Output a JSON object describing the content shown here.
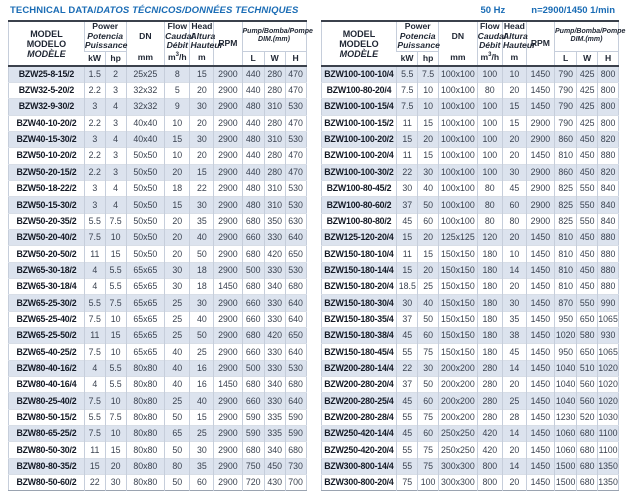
{
  "page": {
    "title_plain": "TECHNICAL DATA/",
    "title_italic": "DATOS TÉCNICOS/DONNÉES TECHNIQUES",
    "frequency": "50 Hz",
    "speed": "n=2900/1450 1/min"
  },
  "table_header": {
    "model": [
      "MODEL",
      "MODELO",
      "MODÈLE"
    ],
    "power": [
      "Power",
      "Potencia",
      "Puissance"
    ],
    "power_units": [
      "kW",
      "hp"
    ],
    "dn_label": "DN",
    "dn_unit": "mm",
    "flow": [
      "Flow",
      "Caudal",
      "Débit"
    ],
    "flow_unit_base": "m",
    "flow_unit_sup": "3",
    "flow_unit_tail": "/h",
    "head": [
      "Head",
      "Altura",
      "Hauteur"
    ],
    "head_unit": "m",
    "rpm_label": "RPM",
    "dim": [
      "Pump/Bomba/Pompe",
      "DIM.(mm)"
    ],
    "dim_units": [
      "L",
      "W",
      "H"
    ]
  },
  "tables": {
    "left": {
      "rows": [
        [
          "BZW25-8-15/2",
          "1.5",
          "2",
          "25x25",
          "8",
          "15",
          "2900",
          "440",
          "280",
          "470"
        ],
        [
          "BZW32-5-20/2",
          "2.2",
          "3",
          "32x32",
          "5",
          "20",
          "2900",
          "440",
          "280",
          "470"
        ],
        [
          "BZW32-9-30/2",
          "3",
          "4",
          "32x32",
          "9",
          "30",
          "2900",
          "480",
          "310",
          "530"
        ],
        [
          "BZW40-10-20/2",
          "2.2",
          "3",
          "40x40",
          "10",
          "20",
          "2900",
          "440",
          "280",
          "470"
        ],
        [
          "BZW40-15-30/2",
          "3",
          "4",
          "40x40",
          "15",
          "30",
          "2900",
          "480",
          "310",
          "530"
        ],
        [
          "BZW50-10-20/2",
          "2.2",
          "3",
          "50x50",
          "10",
          "20",
          "2900",
          "440",
          "280",
          "470"
        ],
        [
          "BZW50-20-15/2",
          "2.2",
          "3",
          "50x50",
          "20",
          "15",
          "2900",
          "440",
          "280",
          "470"
        ],
        [
          "BZW50-18-22/2",
          "3",
          "4",
          "50x50",
          "18",
          "22",
          "2900",
          "480",
          "310",
          "530"
        ],
        [
          "BZW50-15-30/2",
          "3",
          "4",
          "50x50",
          "15",
          "30",
          "2900",
          "480",
          "310",
          "530"
        ],
        [
          "BZW50-20-35/2",
          "5.5",
          "7.5",
          "50x50",
          "20",
          "35",
          "2900",
          "680",
          "350",
          "630"
        ],
        [
          "BZW50-20-40/2",
          "7.5",
          "10",
          "50x50",
          "20",
          "40",
          "2900",
          "660",
          "330",
          "640"
        ],
        [
          "BZW50-20-50/2",
          "11",
          "15",
          "50x50",
          "20",
          "50",
          "2900",
          "680",
          "420",
          "650"
        ],
        [
          "BZW65-30-18/2",
          "4",
          "5.5",
          "65x65",
          "30",
          "18",
          "2900",
          "500",
          "330",
          "530"
        ],
        [
          "BZW65-30-18/4",
          "4",
          "5.5",
          "65x65",
          "30",
          "18",
          "1450",
          "680",
          "340",
          "680"
        ],
        [
          "BZW65-25-30/2",
          "5.5",
          "7.5",
          "65x65",
          "25",
          "30",
          "2900",
          "660",
          "330",
          "640"
        ],
        [
          "BZW65-25-40/2",
          "7.5",
          "10",
          "65x65",
          "25",
          "40",
          "2900",
          "660",
          "330",
          "640"
        ],
        [
          "BZW65-25-50/2",
          "11",
          "15",
          "65x65",
          "25",
          "50",
          "2900",
          "680",
          "420",
          "650"
        ],
        [
          "BZW65-40-25/2",
          "7.5",
          "10",
          "65x65",
          "40",
          "25",
          "2900",
          "660",
          "330",
          "640"
        ],
        [
          "BZW80-40-16/2",
          "4",
          "5.5",
          "80x80",
          "40",
          "16",
          "2900",
          "500",
          "330",
          "530"
        ],
        [
          "BZW80-40-16/4",
          "4",
          "5.5",
          "80x80",
          "40",
          "16",
          "1450",
          "680",
          "340",
          "680"
        ],
        [
          "BZW80-25-40/2",
          "7.5",
          "10",
          "80x80",
          "25",
          "40",
          "2900",
          "660",
          "330",
          "640"
        ],
        [
          "BZW80-50-15/2",
          "5.5",
          "7.5",
          "80x80",
          "50",
          "15",
          "2900",
          "590",
          "335",
          "590"
        ],
        [
          "BZW80-65-25/2",
          "7.5",
          "10",
          "80x80",
          "65",
          "25",
          "2900",
          "590",
          "335",
          "590"
        ],
        [
          "BZW80-50-30/2",
          "11",
          "15",
          "80x80",
          "50",
          "30",
          "2900",
          "680",
          "340",
          "680"
        ],
        [
          "BZW80-80-35/2",
          "15",
          "20",
          "80x80",
          "80",
          "35",
          "2900",
          "750",
          "450",
          "730"
        ],
        [
          "BZW80-50-60/2",
          "22",
          "30",
          "80x80",
          "50",
          "60",
          "2900",
          "720",
          "430",
          "700"
        ]
      ]
    },
    "right": {
      "rows": [
        [
          "BZW100-100-10/4",
          "5.5",
          "7.5",
          "100x100",
          "100",
          "10",
          "1450",
          "790",
          "425",
          "800"
        ],
        [
          "BZW100-80-20/4",
          "7.5",
          "10",
          "100x100",
          "80",
          "20",
          "1450",
          "790",
          "425",
          "800"
        ],
        [
          "BZW100-100-15/4",
          "7.5",
          "10",
          "100x100",
          "100",
          "15",
          "1450",
          "790",
          "425",
          "800"
        ],
        [
          "BZW100-100-15/2",
          "11",
          "15",
          "100x100",
          "100",
          "15",
          "2900",
          "790",
          "425",
          "800"
        ],
        [
          "BZW100-100-20/2",
          "15",
          "20",
          "100x100",
          "100",
          "20",
          "2900",
          "860",
          "450",
          "820"
        ],
        [
          "BZW100-100-20/4",
          "11",
          "15",
          "100x100",
          "100",
          "20",
          "1450",
          "810",
          "450",
          "880"
        ],
        [
          "BZW100-100-30/2",
          "22",
          "30",
          "100x100",
          "100",
          "30",
          "2900",
          "860",
          "450",
          "820"
        ],
        [
          "BZW100-80-45/2",
          "30",
          "40",
          "100x100",
          "80",
          "45",
          "2900",
          "825",
          "550",
          "840"
        ],
        [
          "BZW100-80-60/2",
          "37",
          "50",
          "100x100",
          "80",
          "60",
          "2900",
          "825",
          "550",
          "840"
        ],
        [
          "BZW100-80-80/2",
          "45",
          "60",
          "100x100",
          "80",
          "80",
          "2900",
          "825",
          "550",
          "840"
        ],
        [
          "BZW125-120-20/4",
          "15",
          "20",
          "125x125",
          "120",
          "20",
          "1450",
          "810",
          "450",
          "880"
        ],
        [
          "BZW150-180-10/4",
          "11",
          "15",
          "150x150",
          "180",
          "10",
          "1450",
          "810",
          "450",
          "880"
        ],
        [
          "BZW150-180-14/4",
          "15",
          "20",
          "150x150",
          "180",
          "14",
          "1450",
          "810",
          "450",
          "880"
        ],
        [
          "BZW150-180-20/4",
          "18.5",
          "25",
          "150x150",
          "180",
          "20",
          "1450",
          "810",
          "450",
          "880"
        ],
        [
          "BZW150-180-30/4",
          "30",
          "40",
          "150x150",
          "180",
          "30",
          "1450",
          "870",
          "550",
          "990"
        ],
        [
          "BZW150-180-35/4",
          "37",
          "50",
          "150x150",
          "180",
          "35",
          "1450",
          "950",
          "650",
          "1065"
        ],
        [
          "BZW150-180-38/4",
          "45",
          "60",
          "150x150",
          "180",
          "38",
          "1450",
          "1020",
          "580",
          "930"
        ],
        [
          "BZW150-180-45/4",
          "55",
          "75",
          "150x150",
          "180",
          "45",
          "1450",
          "950",
          "650",
          "1065"
        ],
        [
          "BZW200-280-14/4",
          "22",
          "30",
          "200x200",
          "280",
          "14",
          "1450",
          "1040",
          "510",
          "1020"
        ],
        [
          "BZW200-280-20/4",
          "37",
          "50",
          "200x200",
          "280",
          "20",
          "1450",
          "1040",
          "560",
          "1020"
        ],
        [
          "BZW200-280-25/4",
          "45",
          "60",
          "200x200",
          "280",
          "25",
          "1450",
          "1040",
          "560",
          "1020"
        ],
        [
          "BZW200-280-28/4",
          "55",
          "75",
          "200x200",
          "280",
          "28",
          "1450",
          "1230",
          "520",
          "1030"
        ],
        [
          "BZW250-420-14/4",
          "45",
          "60",
          "250x250",
          "420",
          "14",
          "1450",
          "1060",
          "680",
          "1100"
        ],
        [
          "BZW250-420-20/4",
          "55",
          "75",
          "250x250",
          "420",
          "20",
          "1450",
          "1060",
          "680",
          "1100"
        ],
        [
          "BZW300-800-14/4",
          "55",
          "75",
          "300x300",
          "800",
          "14",
          "1450",
          "1500",
          "680",
          "1350"
        ],
        [
          "BZW300-800-20/4",
          "75",
          "100",
          "300x300",
          "800",
          "20",
          "1450",
          "1500",
          "680",
          "1350"
        ]
      ]
    }
  }
}
